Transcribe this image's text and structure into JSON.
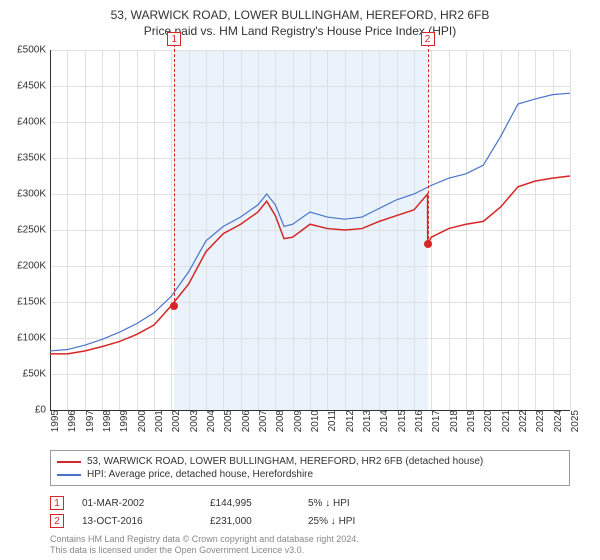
{
  "title": "53, WARWICK ROAD, LOWER BULLINGHAM, HEREFORD, HR2 6FB",
  "subtitle": "Price paid vs. HM Land Registry's House Price Index (HPI)",
  "chart": {
    "type": "line",
    "background_color": "#ffffff",
    "shade_color": "#eaf3fb",
    "grid_color": "#e0e0e0",
    "axis_color": "#333333",
    "y": {
      "min": 0,
      "max": 500000,
      "step": 50000,
      "labels": [
        "£0",
        "£50K",
        "£100K",
        "£150K",
        "£200K",
        "£250K",
        "£300K",
        "£350K",
        "£400K",
        "£450K",
        "£500K"
      ]
    },
    "x": {
      "min": 1995,
      "max": 2025,
      "labels": [
        "1995",
        "1996",
        "1997",
        "1998",
        "1999",
        "2000",
        "2001",
        "2002",
        "2003",
        "2004",
        "2005",
        "2006",
        "2007",
        "2008",
        "2009",
        "2010",
        "2011",
        "2012",
        "2013",
        "2014",
        "2015",
        "2016",
        "2017",
        "2018",
        "2019",
        "2020",
        "2021",
        "2022",
        "2023",
        "2024",
        "2025"
      ]
    },
    "series": [
      {
        "name": "property",
        "label": "53, WARWICK ROAD, LOWER BULLINGHAM, HEREFORD, HR2 6FB (detached house)",
        "color": "#d62728",
        "width": 1.5,
        "points": [
          [
            1995,
            78000
          ],
          [
            1996,
            78000
          ],
          [
            1997,
            82000
          ],
          [
            1998,
            88000
          ],
          [
            1999,
            95000
          ],
          [
            2000,
            105000
          ],
          [
            2001,
            118000
          ],
          [
            2002,
            144995
          ],
          [
            2003,
            175000
          ],
          [
            2004,
            220000
          ],
          [
            2005,
            245000
          ],
          [
            2006,
            258000
          ],
          [
            2007,
            275000
          ],
          [
            2007.5,
            290000
          ],
          [
            2008,
            270000
          ],
          [
            2008.5,
            238000
          ],
          [
            2009,
            240000
          ],
          [
            2010,
            258000
          ],
          [
            2011,
            252000
          ],
          [
            2012,
            250000
          ],
          [
            2013,
            252000
          ],
          [
            2014,
            262000
          ],
          [
            2015,
            270000
          ],
          [
            2016,
            278000
          ],
          [
            2016.78,
            300000
          ],
          [
            2016.79,
            231000
          ],
          [
            2017,
            240000
          ],
          [
            2018,
            252000
          ],
          [
            2019,
            258000
          ],
          [
            2020,
            262000
          ],
          [
            2021,
            282000
          ],
          [
            2022,
            310000
          ],
          [
            2023,
            318000
          ],
          [
            2024,
            322000
          ],
          [
            2025,
            325000
          ]
        ]
      },
      {
        "name": "hpi",
        "label": "HPI: Average price, detached house, Herefordshire",
        "color": "#4a74c9",
        "width": 1.2,
        "points": [
          [
            1995,
            82000
          ],
          [
            1996,
            84000
          ],
          [
            1997,
            90000
          ],
          [
            1998,
            98000
          ],
          [
            1999,
            108000
          ],
          [
            2000,
            120000
          ],
          [
            2001,
            135000
          ],
          [
            2002,
            158000
          ],
          [
            2003,
            192000
          ],
          [
            2004,
            235000
          ],
          [
            2005,
            255000
          ],
          [
            2006,
            268000
          ],
          [
            2007,
            285000
          ],
          [
            2007.5,
            300000
          ],
          [
            2008,
            285000
          ],
          [
            2008.5,
            255000
          ],
          [
            2009,
            258000
          ],
          [
            2010,
            275000
          ],
          [
            2011,
            268000
          ],
          [
            2012,
            265000
          ],
          [
            2013,
            268000
          ],
          [
            2014,
            280000
          ],
          [
            2015,
            292000
          ],
          [
            2016,
            300000
          ],
          [
            2017,
            312000
          ],
          [
            2018,
            322000
          ],
          [
            2019,
            328000
          ],
          [
            2020,
            340000
          ],
          [
            2021,
            380000
          ],
          [
            2022,
            425000
          ],
          [
            2023,
            432000
          ],
          [
            2024,
            438000
          ],
          [
            2025,
            440000
          ]
        ]
      }
    ],
    "markers": [
      {
        "id": "1",
        "year": 2002.17,
        "price": 144995,
        "color": "#d62728"
      },
      {
        "id": "2",
        "year": 2016.78,
        "price": 231000,
        "color": "#d62728"
      }
    ],
    "shade_range": [
      2002.17,
      2016.78
    ]
  },
  "sales": [
    {
      "id": "1",
      "date": "01-MAR-2002",
      "price": "£144,995",
      "diff": "5% ↓ HPI",
      "color": "#d62728"
    },
    {
      "id": "2",
      "date": "13-OCT-2016",
      "price": "£231,000",
      "diff": "25% ↓ HPI",
      "color": "#d62728"
    }
  ],
  "footer": {
    "line1": "Contains HM Land Registry data © Crown copyright and database right 2024.",
    "line2": "This data is licensed under the Open Government Licence v3.0."
  }
}
